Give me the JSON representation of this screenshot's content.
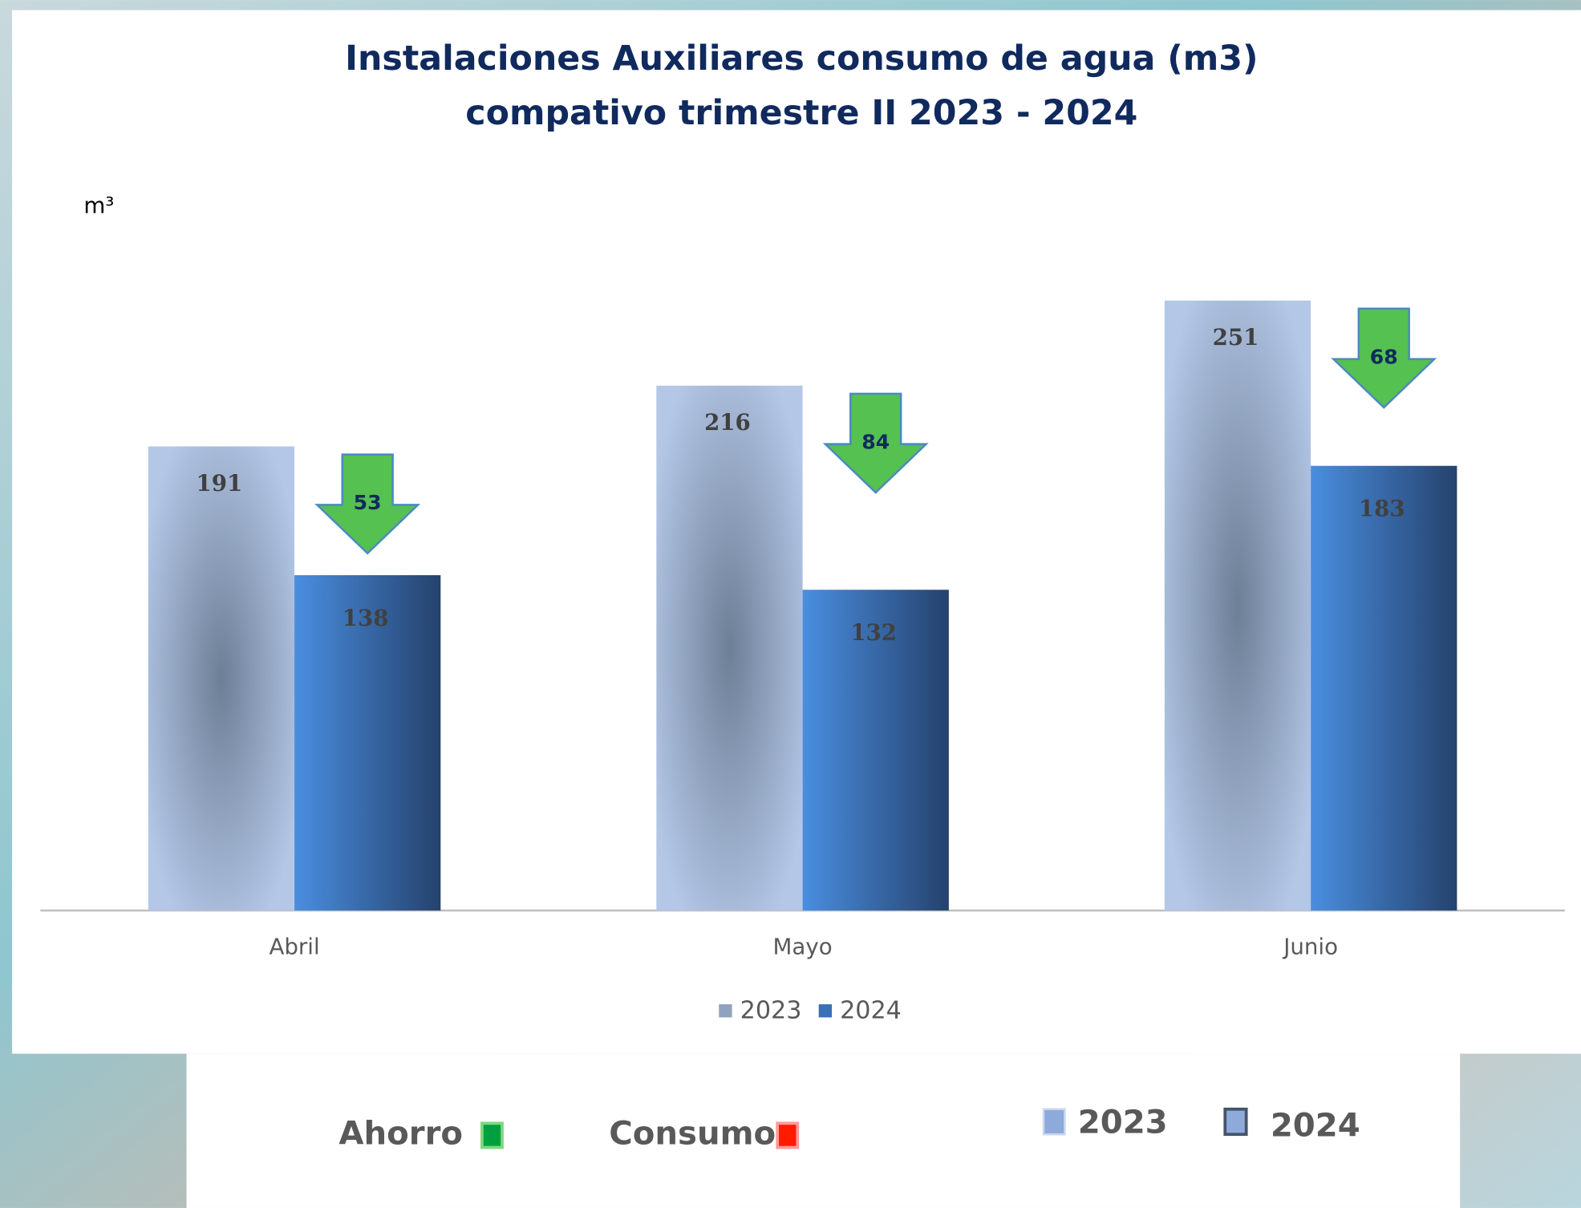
{
  "chart_data": {
    "type": "bar",
    "title": [
      "Instalaciones Auxiliares consumo de agua (m3)",
      "compativo trimestre II 2023 - 2024"
    ],
    "y_label": "m³",
    "categories": [
      "Abril",
      "Mayo",
      "Junio"
    ],
    "series": [
      {
        "name": "2023",
        "color": "#b4c7e7",
        "values": [
          191,
          216,
          251
        ]
      },
      {
        "name": "2024",
        "color": "#3f7fd0",
        "values": [
          138,
          132,
          183
        ]
      }
    ],
    "savings": {
      "color": "#55c150",
      "values": [
        53,
        84,
        68
      ]
    },
    "ylim": [
      0,
      300
    ],
    "legend": "bottom"
  },
  "footer_legend": [
    "Ahorro",
    "Consumo",
    "2023",
    "2024"
  ]
}
